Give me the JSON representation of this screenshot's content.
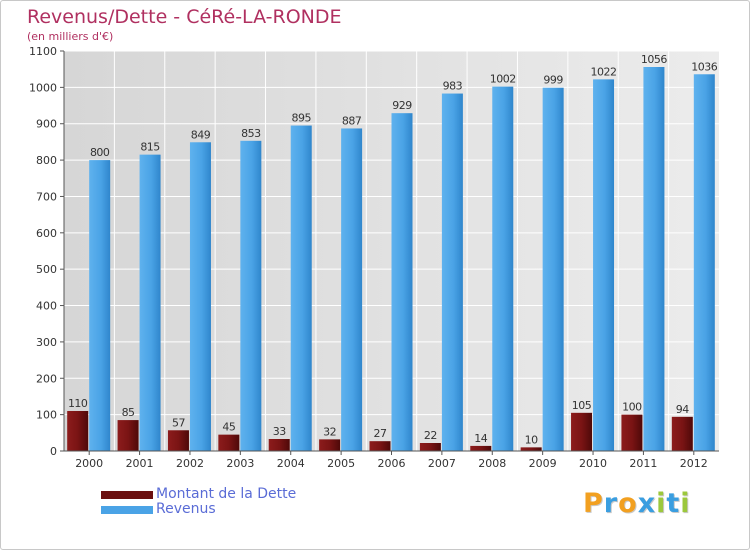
{
  "title": "Revenus/Dette - CéRé-LA-RONDE",
  "subtitle": "(en milliers d'€)",
  "brand": {
    "letters": [
      "P",
      "r",
      "o",
      "x",
      "i",
      "t",
      "i"
    ],
    "colors": [
      "#f2a020",
      "#3a9ee0",
      "#f2a020",
      "#3a9ee0",
      "#9cc83c",
      "#3a9ee0",
      "#9cc83c"
    ]
  },
  "legend": {
    "placement": "bottom-left",
    "items": [
      {
        "label": "Montant de la Dette",
        "color": "#6b0f0f"
      },
      {
        "label": "Revenus",
        "color": "#4aa3e6"
      }
    ]
  },
  "chart_data": {
    "type": "bar",
    "categories": [
      "2000",
      "2001",
      "2002",
      "2003",
      "2004",
      "2005",
      "2006",
      "2007",
      "2008",
      "2009",
      "2010",
      "2011",
      "2012"
    ],
    "series": [
      {
        "name": "Montant de la Dette",
        "color": "#6b0f0f",
        "values": [
          110,
          85,
          57,
          45,
          33,
          32,
          27,
          22,
          14,
          10,
          105,
          100,
          94
        ]
      },
      {
        "name": "Revenus",
        "color": "#4aa3e6",
        "values": [
          800,
          815,
          849,
          853,
          895,
          887,
          929,
          983,
          1002,
          999,
          1022,
          1056,
          1036
        ]
      }
    ],
    "ylim": [
      0,
      1100
    ],
    "yticks": [
      0,
      100,
      200,
      300,
      400,
      500,
      600,
      700,
      800,
      900,
      1000,
      1100
    ],
    "grid": true,
    "xlabel": "",
    "ylabel": ""
  }
}
